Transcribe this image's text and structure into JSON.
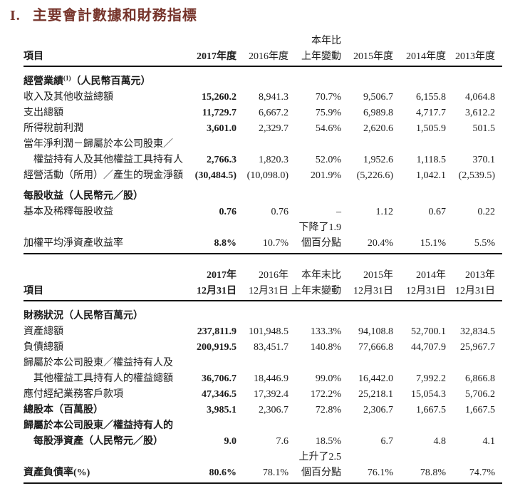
{
  "page": {
    "title_numeral": "I.",
    "title": "主要會計數據和財務指標"
  },
  "colors": {
    "title_accent": "#76342B",
    "text": "#1c1c1c"
  },
  "annual_table": {
    "item_header": "項目",
    "columns": [
      {
        "top": "",
        "bottom": "2017年度"
      },
      {
        "top": "",
        "bottom": "2016年度"
      },
      {
        "top": "本年比",
        "bottom": "上年變動"
      },
      {
        "top": "",
        "bottom": "2015年度"
      },
      {
        "top": "",
        "bottom": "2014年度"
      },
      {
        "top": "",
        "bottom": "2013年度"
      }
    ],
    "rows": [
      {
        "type": "section",
        "label": "經營業績",
        "sup": "(1)",
        "label_suffix": "（人民幣百萬元）"
      },
      {
        "type": "data",
        "label": "收入及其他收益總額",
        "values": [
          "15,260.2",
          "8,941.3",
          "70.7%",
          "9,506.7",
          "6,155.8",
          "4,064.8"
        ]
      },
      {
        "type": "data",
        "label": "支出總額",
        "values": [
          "11,729.7",
          "6,667.2",
          "75.9%",
          "6,989.8",
          "4,717.7",
          "3,612.2"
        ]
      },
      {
        "type": "data",
        "label": "所得稅前利潤",
        "values": [
          "3,601.0",
          "2,329.7",
          "54.6%",
          "2,620.6",
          "1,505.9",
          "501.5"
        ]
      },
      {
        "type": "label",
        "label": "當年淨利潤－歸屬於本公司股東／"
      },
      {
        "type": "data",
        "label": "權益持有人及其他權益工具持有人",
        "values": [
          "2,766.3",
          "1,820.3",
          "52.0%",
          "1,952.6",
          "1,118.5",
          "370.1"
        ]
      },
      {
        "type": "data",
        "label": "經營活動（所用）／產生的現金淨額",
        "values": [
          "(30,484.5)",
          "(10,098.0)",
          "201.9%",
          "(5,226.6)",
          "1,042.1",
          "(2,539.5)"
        ]
      },
      {
        "type": "section",
        "label": "每股收益（人民幣元／股）"
      },
      {
        "type": "data",
        "label": "基本及稀釋每股收益",
        "values": [
          "0.76",
          "0.76",
          "–",
          "1.12",
          "0.67",
          "0.22"
        ]
      },
      {
        "type": "data",
        "label": "加權平均淨資產收益率",
        "change_note": "下降了1.9",
        "values": [
          "8.8%",
          "10.7%",
          "個百分點",
          "20.4%",
          "15.1%",
          "5.5%"
        ]
      }
    ]
  },
  "yearend_table": {
    "item_header": "項目",
    "columns": [
      {
        "top": "2017年",
        "bottom": "12月31日"
      },
      {
        "top": "2016年",
        "bottom": "12月31日"
      },
      {
        "top": "本年末比",
        "bottom": "上年末變動"
      },
      {
        "top": "2015年",
        "bottom": "12月31日"
      },
      {
        "top": "2014年",
        "bottom": "12月31日"
      },
      {
        "top": "2013年",
        "bottom": "12月31日"
      }
    ],
    "rows": [
      {
        "type": "section",
        "label": "財務狀況（人民幣百萬元）"
      },
      {
        "type": "data",
        "label": "資產總額",
        "values": [
          "237,811.9",
          "101,948.5",
          "133.3%",
          "94,108.8",
          "52,700.1",
          "32,834.5"
        ]
      },
      {
        "type": "data",
        "label": "負債總額",
        "values": [
          "200,919.5",
          "83,451.7",
          "140.8%",
          "77,666.8",
          "44,707.9",
          "25,967.7"
        ]
      },
      {
        "type": "label",
        "label": "歸屬於本公司股東／權益持有人及"
      },
      {
        "type": "data",
        "label": "其他權益工具持有人的權益總額",
        "values": [
          "36,706.7",
          "18,446.9",
          "99.0%",
          "16,442.0",
          "7,992.2",
          "6,866.8"
        ]
      },
      {
        "type": "data",
        "label": "應付經紀業務客戶款項",
        "values": [
          "47,346.5",
          "17,392.4",
          "172.2%",
          "25,218.1",
          "15,054.3",
          "5,706.2"
        ]
      },
      {
        "type": "data",
        "label": "總股本（百萬股）",
        "values": [
          "3,985.1",
          "2,306.7",
          "72.8%",
          "2,306.7",
          "1,667.5",
          "1,667.5"
        ]
      },
      {
        "type": "label",
        "label": "歸屬於本公司股東／權益持有人的"
      },
      {
        "type": "data",
        "label": "每股淨資產（人民幣元／股）",
        "values": [
          "9.0",
          "7.6",
          "18.5%",
          "6.7",
          "4.8",
          "4.1"
        ]
      },
      {
        "type": "data",
        "label": "資產負債率(%)",
        "change_note": "上升了2.5",
        "values": [
          "80.6%",
          "78.1%",
          "個百分點",
          "76.1%",
          "78.8%",
          "74.7%"
        ]
      }
    ]
  }
}
